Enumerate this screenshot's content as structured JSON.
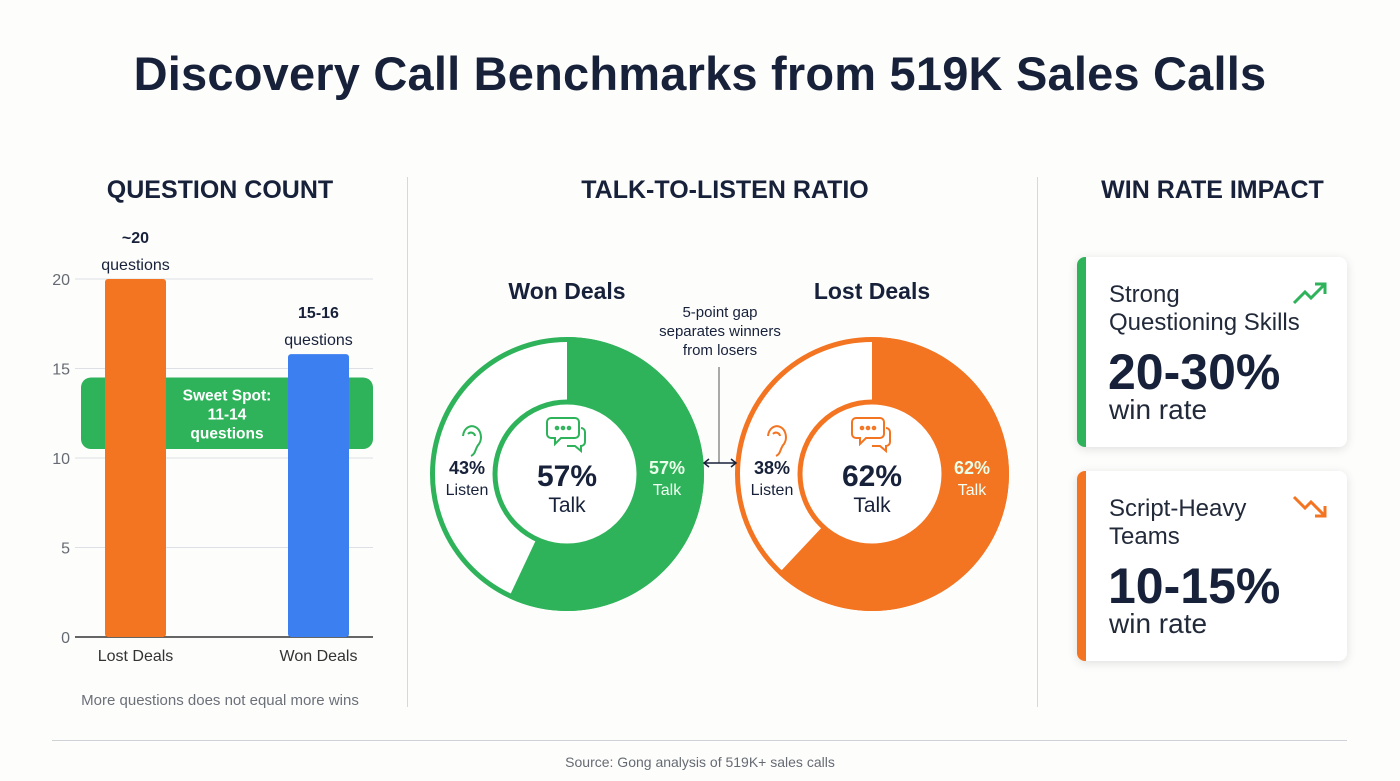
{
  "title": "Discovery Call Benchmarks from 519K Sales Calls",
  "sections": {
    "questions": "QUESTION COUNT",
    "ratio": "TALK-TO-LISTEN RATIO",
    "winrate": "WIN RATE IMPACT"
  },
  "colors": {
    "orange": "#f37421",
    "blue": "#3b7ff0",
    "green": "#2fb35a",
    "navy": "#17213a"
  },
  "chart_data": [
    {
      "type": "bar",
      "title": "QUESTION COUNT",
      "categories": [
        "Lost Deals",
        "Won Deals"
      ],
      "values": [
        20,
        15.8
      ],
      "bar_colors": [
        "#f37421",
        "#3b7ff0"
      ],
      "data_labels": [
        {
          "value": "~20",
          "unit": "questions"
        },
        {
          "value": "15-16",
          "unit": "questions"
        }
      ],
      "yticks": [
        "0",
        "5",
        "10",
        "15",
        "20"
      ],
      "ylim": [
        0,
        20
      ],
      "band": {
        "from": 10.5,
        "to": 14.5,
        "label_lines": [
          "Sweet Spot:",
          "11-14",
          "questions"
        ]
      },
      "note": "More questions does not equal more wins"
    },
    {
      "type": "pie",
      "title": "Won Deals",
      "slices": [
        {
          "label": "Talk",
          "value": 57
        },
        {
          "label": "Listen",
          "value": 43
        }
      ],
      "center_value": "57%",
      "center_label": "Talk",
      "talk_value": "57%",
      "talk_label": "Talk",
      "listen_value": "43%",
      "listen_label": "Listen",
      "color": "#2fb35a"
    },
    {
      "type": "pie",
      "title": "Lost Deals",
      "slices": [
        {
          "label": "Talk",
          "value": 62
        },
        {
          "label": "Listen",
          "value": 38
        }
      ],
      "center_value": "62%",
      "center_label": "Talk",
      "talk_value": "62%",
      "talk_label": "Talk",
      "listen_value": "38%",
      "listen_label": "Listen",
      "color": "#f37421"
    }
  ],
  "gap_annotation": [
    "5-point gap",
    "separates winners",
    "from losers"
  ],
  "cards": [
    {
      "label_lines": [
        "Strong",
        "Questioning Skills"
      ],
      "value": "20-30%",
      "sub": "win rate",
      "icon": "trend-up-icon",
      "color": "#2fb35a"
    },
    {
      "label_lines": [
        "Script-Heavy",
        "Teams"
      ],
      "value": "10-15%",
      "sub": "win rate",
      "icon": "trend-down-icon",
      "color": "#f37421"
    }
  ],
  "source": "Source: Gong analysis of 519K+ sales calls"
}
